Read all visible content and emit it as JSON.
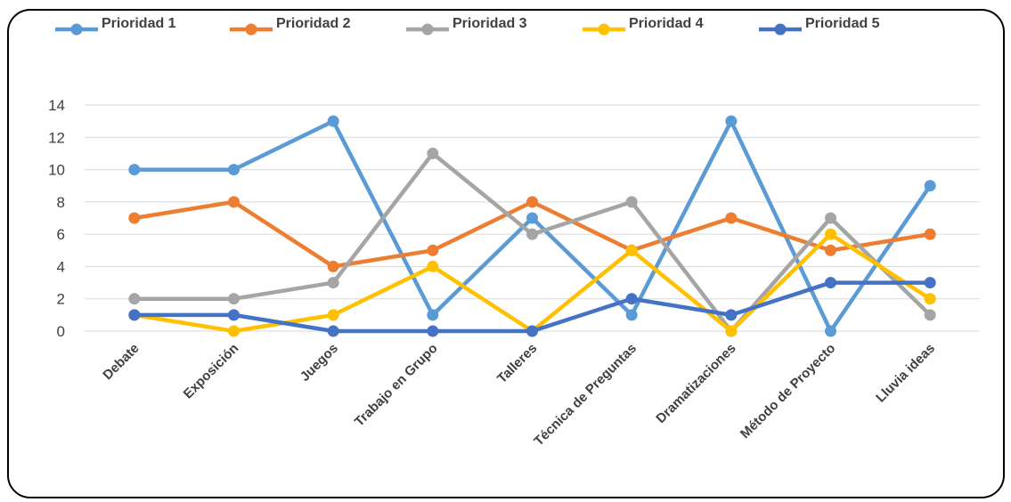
{
  "chart_data": {
    "type": "line",
    "title": "",
    "xlabel": "",
    "ylabel": "",
    "ylim": [
      0,
      14
    ],
    "yticks": [
      0,
      2,
      4,
      6,
      8,
      10,
      12,
      14
    ],
    "grid": true,
    "legend_position": "top",
    "categories": [
      "Debate",
      "Exposición",
      "Juegos",
      "Trabajo en Grupo",
      "Talleres",
      "Técnica de Preguntas",
      "Dramatizaciones",
      "Método de Proyecto",
      "Lluvia ideas"
    ],
    "series": [
      {
        "name": "Prioridad 1",
        "color": "#5B9BD5",
        "values": [
          10,
          10,
          13,
          1,
          7,
          1,
          13,
          0,
          9
        ]
      },
      {
        "name": "Prioridad 2",
        "color": "#ED7D31",
        "values": [
          7,
          8,
          4,
          5,
          8,
          5,
          7,
          5,
          6
        ]
      },
      {
        "name": "Prioridad 3",
        "color": "#A5A5A5",
        "values": [
          2,
          2,
          3,
          11,
          6,
          8,
          0,
          7,
          1
        ]
      },
      {
        "name": "Prioridad 4",
        "color": "#FFC000",
        "values": [
          1,
          0,
          1,
          4,
          0,
          5,
          0,
          6,
          2
        ]
      },
      {
        "name": "Prioridad 5",
        "color": "#4472C4",
        "values": [
          1,
          1,
          0,
          0,
          0,
          2,
          1,
          3,
          3
        ]
      }
    ]
  }
}
